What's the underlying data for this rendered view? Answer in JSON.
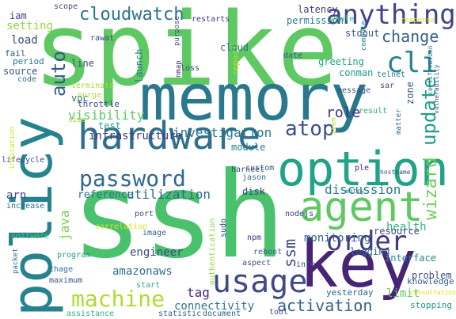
{
  "words": [
    {
      "text": "spike",
      "color": "#5ec962"
    },
    {
      "text": "ssh",
      "color": "#4ac16d"
    },
    {
      "text": "memory",
      "color": "#2a788e"
    },
    {
      "text": "policy",
      "color": "#26828e"
    },
    {
      "text": "option",
      "color": "#20a386"
    },
    {
      "text": "hardware",
      "color": "#2e6e8e"
    },
    {
      "text": "key",
      "color": "#482475"
    },
    {
      "text": "agent",
      "color": "#5ec962"
    },
    {
      "text": "usage",
      "color": "#3e4a89"
    },
    {
      "text": "password",
      "color": "#31688e"
    },
    {
      "text": "machine",
      "color": "#addc30"
    },
    {
      "text": "order",
      "color": "#443983"
    },
    {
      "text": "cli",
      "color": "#25848e"
    },
    {
      "text": "anything",
      "color": "#414487"
    },
    {
      "text": "cloudwatch",
      "color": "#2c728e"
    },
    {
      "text": "auto",
      "color": "#38588c"
    },
    {
      "text": "update",
      "color": "#1fa088"
    },
    {
      "text": "atop",
      "color": "#3b528b"
    },
    {
      "text": "activation",
      "color": "#33638d"
    },
    {
      "text": "change",
      "color": "#35608d"
    },
    {
      "text": "ssm",
      "color": "#3e4c8a"
    },
    {
      "text": "wizard",
      "color": "#6ece58"
    },
    {
      "text": "utilization",
      "color": "#31678e"
    },
    {
      "text": "role",
      "color": "#472c7a"
    },
    {
      "text": "visibility",
      "color": "#5ec962"
    },
    {
      "text": "investigation",
      "color": "#2a788e"
    },
    {
      "text": "infrastructure",
      "color": "#453781"
    },
    {
      "text": "discussion",
      "color": "#287c8e"
    },
    {
      "text": "monitoring",
      "color": "#32648e"
    },
    {
      "text": "java",
      "color": "#7ad151"
    },
    {
      "text": "engineer",
      "color": "#3f4788"
    },
    {
      "text": "amazonaws",
      "color": "#2d718e"
    },
    {
      "text": "connectivity",
      "color": "#2a778e"
    },
    {
      "text": "tag",
      "color": "#482979"
    },
    {
      "text": "reference",
      "color": "#2d708e"
    },
    {
      "text": "problem",
      "color": "#3c508b"
    },
    {
      "text": "limit",
      "color": "#5ec962"
    },
    {
      "text": "health",
      "color": "#31b57b"
    },
    {
      "text": "setting",
      "color": "#8fd744"
    },
    {
      "text": "vpc",
      "color": "#2f6b8e"
    },
    {
      "text": "module",
      "color": "#277f8e"
    },
    {
      "text": "arn",
      "color": "#3e4989"
    },
    {
      "text": "latency",
      "color": "#443b84"
    },
    {
      "text": "permission",
      "color": "#287d8e"
    },
    {
      "text": "stdout",
      "color": "#3b528b"
    },
    {
      "text": "greeting",
      "color": "#20a486"
    },
    {
      "text": "conman",
      "color": "#1f9a8a"
    },
    {
      "text": "test",
      "color": "#22a785"
    },
    {
      "text": "load",
      "color": "#3e4a89"
    },
    {
      "text": "iam",
      "color": "#433e85"
    },
    {
      "text": "cloud",
      "color": "#2c728e"
    },
    {
      "text": "disk",
      "color": "#3f4788"
    },
    {
      "text": "zone",
      "color": "#3a548c"
    },
    {
      "text": "logging",
      "color": "#2f6c8e"
    },
    {
      "text": "resource",
      "color": "#3e4c8a"
    },
    {
      "text": "interface",
      "color": "#24878e"
    },
    {
      "text": "knowledge",
      "color": "#375a8c"
    },
    {
      "text": "stopping",
      "color": "#1f968b"
    },
    {
      "text": "yesterday",
      "color": "#355f8d"
    },
    {
      "text": "throttle",
      "color": "#3c4f8a"
    },
    {
      "text": "source",
      "color": "#3d4d8a"
    },
    {
      "text": "fail",
      "color": "#38598c"
    },
    {
      "text": "period",
      "color": "#2b748e"
    },
    {
      "text": "code",
      "color": "#2c738e"
    },
    {
      "text": "line",
      "color": "#3f4889"
    },
    {
      "text": "launch",
      "color": "#277e8e"
    },
    {
      "text": "report",
      "color": "#b5de2b"
    },
    {
      "text": "restarts",
      "color": "#453882"
    },
    {
      "text": "date",
      "color": "#3b518b"
    },
    {
      "text": "whole",
      "color": "#35b779"
    },
    {
      "text": "telnet",
      "color": "#2a768e"
    },
    {
      "text": "compute",
      "color": "#25838e"
    },
    {
      "text": "sar",
      "color": "#3e4a89"
    },
    {
      "text": "message",
      "color": "#3e4c8a"
    },
    {
      "text": "result",
      "color": "#29af7f"
    },
    {
      "text": "item",
      "color": "#bddf26"
    },
    {
      "text": "matter",
      "color": "#32658e"
    },
    {
      "text": "custom",
      "color": "#39568c"
    },
    {
      "text": "jason",
      "color": "#2d708e"
    },
    {
      "text": "harneet",
      "color": "#3e4989"
    },
    {
      "text": "ple",
      "color": "#482173"
    },
    {
      "text": "nodejs",
      "color": "#423f85"
    },
    {
      "text": "port",
      "color": "#3b528b"
    },
    {
      "text": "image",
      "color": "#355e8d"
    },
    {
      "text": "npm",
      "color": "#46337f"
    },
    {
      "text": "sudo",
      "color": "#3a548c"
    },
    {
      "text": "authentication",
      "color": "#90d743"
    },
    {
      "text": "reboot",
      "color": "#34618d"
    },
    {
      "text": "aspect",
      "color": "#3d4e8a"
    },
    {
      "text": "info",
      "color": "#3e4a89"
    },
    {
      "text": "tool",
      "color": "#3f4889"
    },
    {
      "text": "document",
      "color": "#32648e"
    },
    {
      "text": "statistic",
      "color": "#33628d"
    },
    {
      "text": "start",
      "color": "#27ad81"
    },
    {
      "text": "assistance",
      "color": "#2db27d"
    },
    {
      "text": "maximum",
      "color": "#3b528b"
    },
    {
      "text": "chage",
      "color": "#2a768e"
    },
    {
      "text": "program",
      "color": "#1f9e89"
    },
    {
      "text": "software",
      "color": "#4ac16d"
    },
    {
      "text": "packet",
      "color": "#2c738e"
    },
    {
      "text": "increase",
      "color": "#2f6c8e"
    },
    {
      "text": "lifecycle",
      "color": "#3e4c8a"
    },
    {
      "text": "indication",
      "color": "#d2e21b"
    },
    {
      "text": "side",
      "color": "#a0da39"
    },
    {
      "text": "terminate",
      "color": "#a8db34"
    },
    {
      "text": "purge",
      "color": "#b2dd2d"
    },
    {
      "text": "rawat",
      "color": "#3e4989"
    },
    {
      "text": "purpose",
      "color": "#3b528b"
    },
    {
      "text": "loss",
      "color": "#3e4c8a"
    },
    {
      "text": "nmap",
      "color": "#482576"
    },
    {
      "text": "scope",
      "color": "#3f4788"
    },
    {
      "text": "response",
      "color": "#d8e219"
    },
    {
      "text": "entry",
      "color": "#2c738e"
    },
    {
      "text": "vulnerability",
      "color": "#3e4c8a"
    },
    {
      "text": "hostname",
      "color": "#3e4a89"
    },
    {
      "text": "correlation",
      "color": "#dde318"
    },
    {
      "text": "consultation",
      "color": "#e2e418"
    },
    {
      "text": "certification",
      "color": "#2c738e"
    }
  ]
}
